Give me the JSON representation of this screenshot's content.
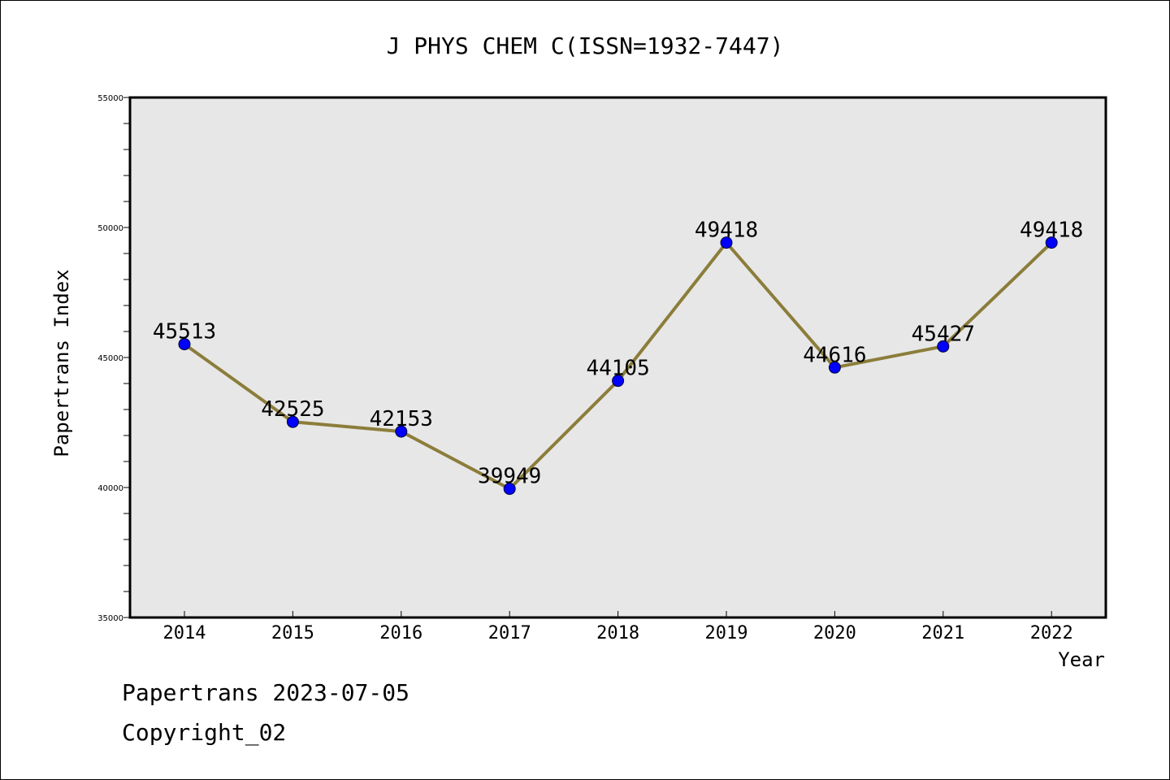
{
  "chart_data": {
    "type": "line",
    "title": "J PHYS CHEM C(ISSN=1932-7447)",
    "xlabel": "Year",
    "ylabel": "Papertrans Index",
    "categories": [
      "2014",
      "2015",
      "2016",
      "2017",
      "2018",
      "2019",
      "2020",
      "2021",
      "2022"
    ],
    "series": [
      {
        "values": [
          45513,
          42525,
          42153,
          39949,
          44105,
          49418,
          44616,
          45427,
          49418
        ],
        "data_labels": [
          "45513",
          "42525",
          "42153",
          "39949",
          "44105",
          "49418",
          "44616",
          "45427",
          "49418"
        ]
      }
    ],
    "ylim": [
      35000,
      55000
    ],
    "yticks": [
      "35000",
      "40000",
      "45000",
      "50000",
      "55000"
    ],
    "grid": false,
    "colors": {
      "line": "#8b7d3a",
      "marker": "#0000ff",
      "plot_background": "#e7e7e7"
    }
  },
  "footer": {
    "date_text": "Papertrans 2023-07-05",
    "copyright_text": "Copyright_02"
  }
}
